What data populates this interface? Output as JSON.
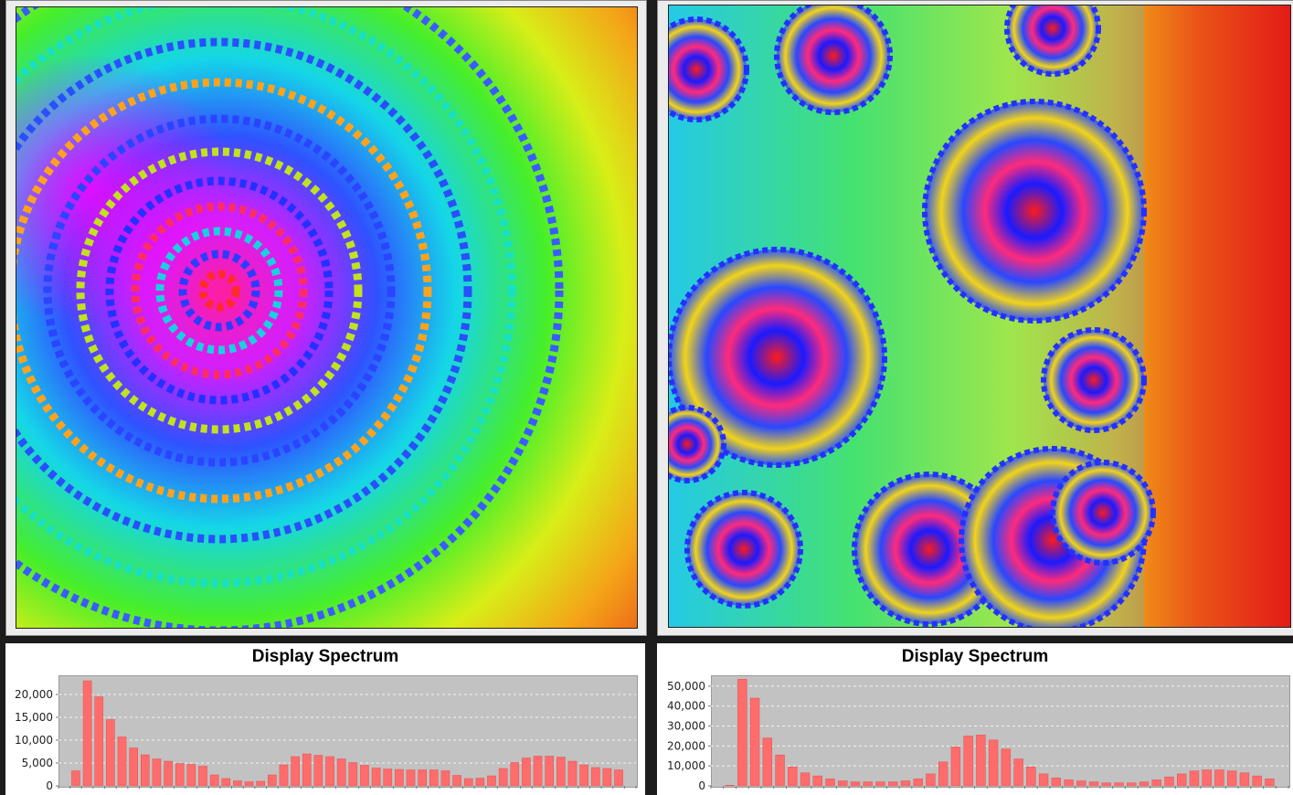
{
  "left_panel": {
    "chart_data": {
      "type": "bar",
      "title": "Display Spectrum",
      "xlabel": "",
      "ylabel": "",
      "ylim": [
        0,
        24000
      ],
      "yticks": [
        0,
        5000,
        10000,
        15000,
        20000
      ],
      "ytick_labels": [
        "0",
        "5,000",
        "10,000",
        "15,000",
        "20,000"
      ],
      "grid": true,
      "bar_color": "#ff6c6c",
      "values": [
        3300,
        23000,
        19500,
        14500,
        10700,
        8300,
        6800,
        5900,
        5400,
        4900,
        4700,
        4300,
        2400,
        1600,
        1100,
        900,
        1000,
        2400,
        4600,
        6400,
        7000,
        6700,
        6400,
        5900,
        5100,
        4500,
        3900,
        3700,
        3600,
        3500,
        3500,
        3500,
        3300,
        2300,
        1600,
        1700,
        2200,
        3800,
        5100,
        6100,
        6500,
        6500,
        6300,
        5400,
        4600,
        4000,
        3800,
        3500
      ]
    }
  },
  "right_panel": {
    "chart_data": {
      "type": "bar",
      "title": "Display Spectrum",
      "xlabel": "",
      "ylabel": "",
      "ylim": [
        0,
        55000
      ],
      "yticks": [
        0,
        10000,
        20000,
        30000,
        40000,
        50000
      ],
      "ytick_labels": [
        "0",
        "10,000",
        "20,000",
        "30,000",
        "40,000",
        "50,000"
      ],
      "grid": true,
      "bar_color": "#ff6c6c",
      "values": [
        300,
        53500,
        44000,
        24000,
        15500,
        9500,
        6500,
        5000,
        3500,
        2500,
        2000,
        2000,
        2000,
        2000,
        2500,
        3500,
        6000,
        12000,
        19500,
        25000,
        25500,
        23000,
        18500,
        13500,
        9500,
        6000,
        4000,
        3000,
        2500,
        2000,
        1500,
        1500,
        1500,
        2000,
        3000,
        4500,
        6000,
        7500,
        8000,
        8000,
        7500,
        6500,
        5000,
        3500
      ]
    }
  }
}
